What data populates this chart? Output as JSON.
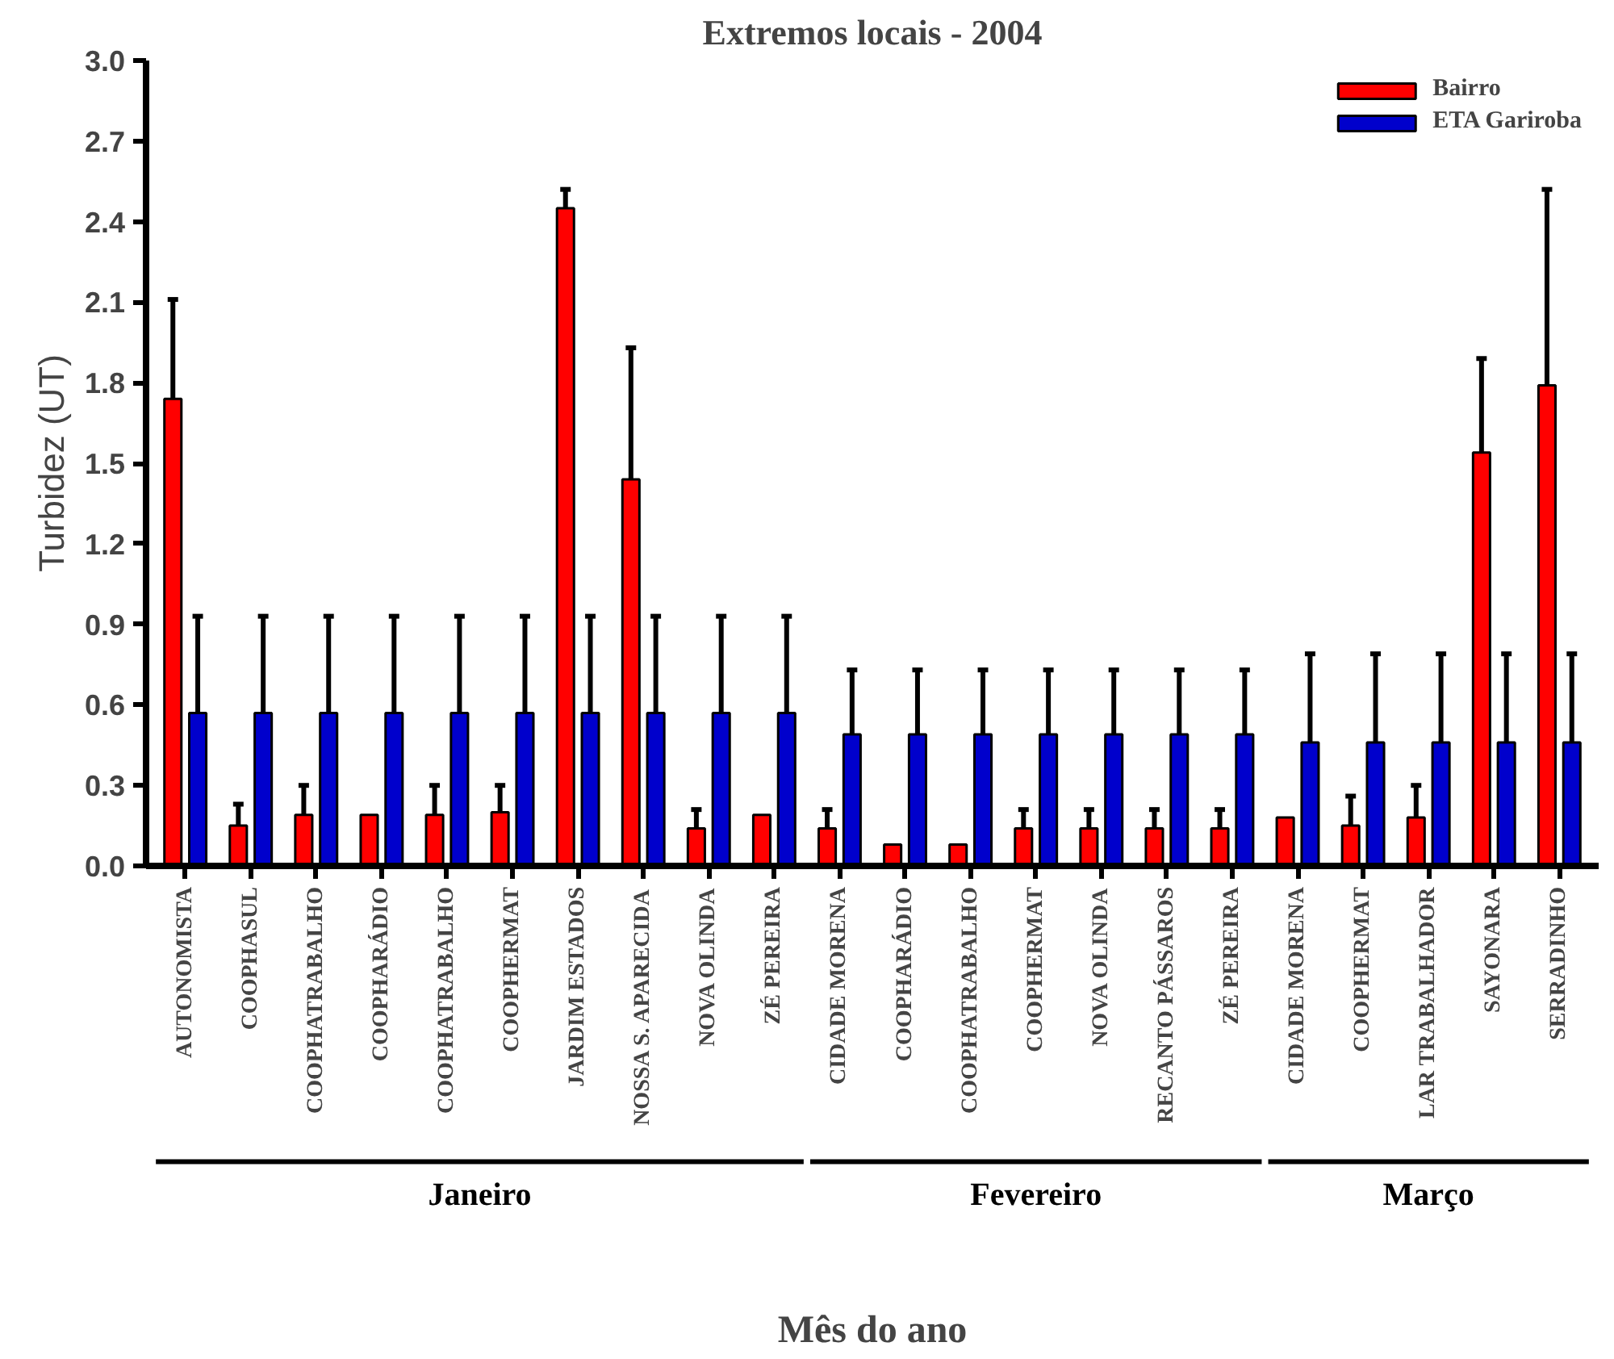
{
  "chart_data": {
    "type": "bar",
    "title": "Extremos locais - 2004",
    "xlabel": "Mês do ano",
    "ylabel": "Turbidez (UT)",
    "categories": [
      "AUTONOMISTA",
      "COOPHASUL",
      "COOPHATRABALHO",
      "COOPHARÁDIO",
      "COOPHATRABALHO",
      "COOPHERMAT",
      "JARDIM ESTADOS",
      "NOSSA S. APARECIDA",
      "NOVA OLINDA",
      "ZÉ PEREIRA",
      "CIDADE MORENA",
      "COOPHARÁDIO",
      "COOPHATRABALHO",
      "COOPHERMAT",
      "NOVA OLINDA",
      "RECANTO PÁSSAROS",
      "ZÉ PEREIRA",
      "CIDADE MORENA",
      "COOPHERMAT",
      "LAR TRABALHADOR",
      "SAYONARA",
      "SERRADINHO"
    ],
    "series": [
      {
        "name": "Bairro",
        "color": "#ff0000",
        "values": [
          1.74,
          0.15,
          0.19,
          0.19,
          0.19,
          0.2,
          2.45,
          1.44,
          0.14,
          0.19,
          0.14,
          0.08,
          0.08,
          0.14,
          0.14,
          0.14,
          0.14,
          0.18,
          0.15,
          0.18,
          1.54,
          1.79
        ],
        "errors": [
          0.37,
          0.08,
          0.11,
          null,
          0.11,
          0.1,
          0.07,
          0.49,
          0.07,
          null,
          0.07,
          null,
          null,
          0.07,
          0.07,
          0.07,
          0.07,
          null,
          0.11,
          0.12,
          0.35,
          0.73
        ]
      },
      {
        "name": "ETA Gariroba",
        "color": "#0000cc",
        "values": [
          0.57,
          0.57,
          0.57,
          0.57,
          0.57,
          0.57,
          0.57,
          0.57,
          0.57,
          0.57,
          0.49,
          0.49,
          0.49,
          0.49,
          0.49,
          0.49,
          0.49,
          0.46,
          0.46,
          0.46,
          0.46,
          0.46
        ],
        "errors": [
          0.36,
          0.36,
          0.36,
          0.36,
          0.36,
          0.36,
          0.36,
          0.36,
          0.36,
          0.36,
          0.24,
          0.24,
          0.24,
          0.24,
          0.24,
          0.24,
          0.24,
          0.33,
          0.33,
          0.33,
          0.33,
          0.33
        ]
      }
    ],
    "annotations": [
      "Janeiro",
      "Fevereiro",
      "Março"
    ],
    "ylim": [
      0,
      3.0
    ],
    "yticks": [
      {
        "value": 0,
        "label": "0.0"
      },
      0.3,
      0.6,
      0.9,
      1.2,
      1.5,
      1.8,
      2.1,
      2.4,
      2.7,
      {
        "value": 3,
        "label": "3.0"
      }
    ],
    "grid": false,
    "legend": "top right"
  }
}
